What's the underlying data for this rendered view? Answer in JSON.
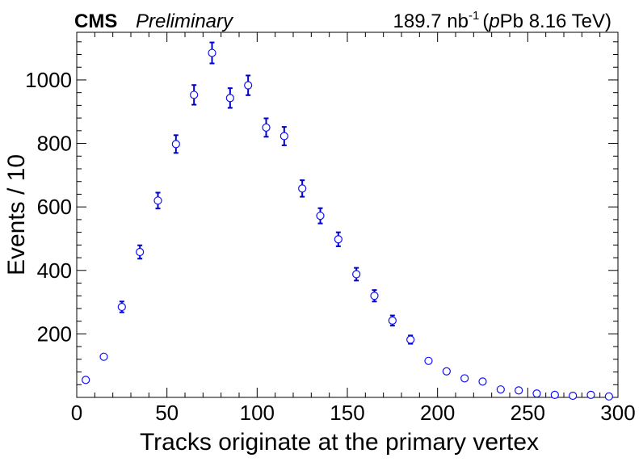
{
  "header": {
    "experiment": "CMS",
    "status": "Preliminary",
    "lumi_value": "189.7 nb",
    "lumi_exponent": "-1",
    "collision_prefix": "(",
    "collision_italic": "p",
    "collision_rest": "Pb 8.16 TeV)"
  },
  "chart_data": {
    "type": "scatter",
    "xlabel": "Tracks originate at the primary vertex",
    "ylabel": "Events / 10",
    "xlim": [
      0,
      300
    ],
    "ylim": [
      0,
      1150
    ],
    "x_ticks": [
      0,
      50,
      100,
      150,
      200,
      250,
      300
    ],
    "y_ticks": [
      200,
      400,
      600,
      800,
      1000
    ],
    "marker": "open-circle",
    "marker_color": "#1010ff",
    "errorbar_color": "#0000cc",
    "series": [
      {
        "x": [
          5,
          15,
          25,
          35,
          45,
          55,
          65,
          75,
          85,
          95,
          105,
          115,
          125,
          135,
          145,
          155,
          165,
          175,
          185,
          195,
          205,
          215,
          225,
          235,
          245,
          255,
          265,
          275,
          285,
          295
        ],
        "values": [
          55,
          128,
          285,
          458,
          620,
          798,
          953,
          1085,
          943,
          983,
          850,
          823,
          658,
          572,
          498,
          388,
          320,
          242,
          182,
          115,
          82,
          60,
          50,
          25,
          22,
          12,
          8,
          5,
          8,
          3
        ],
        "errors": [
          7,
          11,
          17,
          21,
          25,
          28,
          31,
          33,
          31,
          31,
          29,
          29,
          26,
          24,
          22,
          20,
          18,
          16,
          13,
          11,
          9,
          8,
          7,
          5,
          5,
          3,
          3,
          2,
          3,
          2
        ]
      }
    ]
  }
}
